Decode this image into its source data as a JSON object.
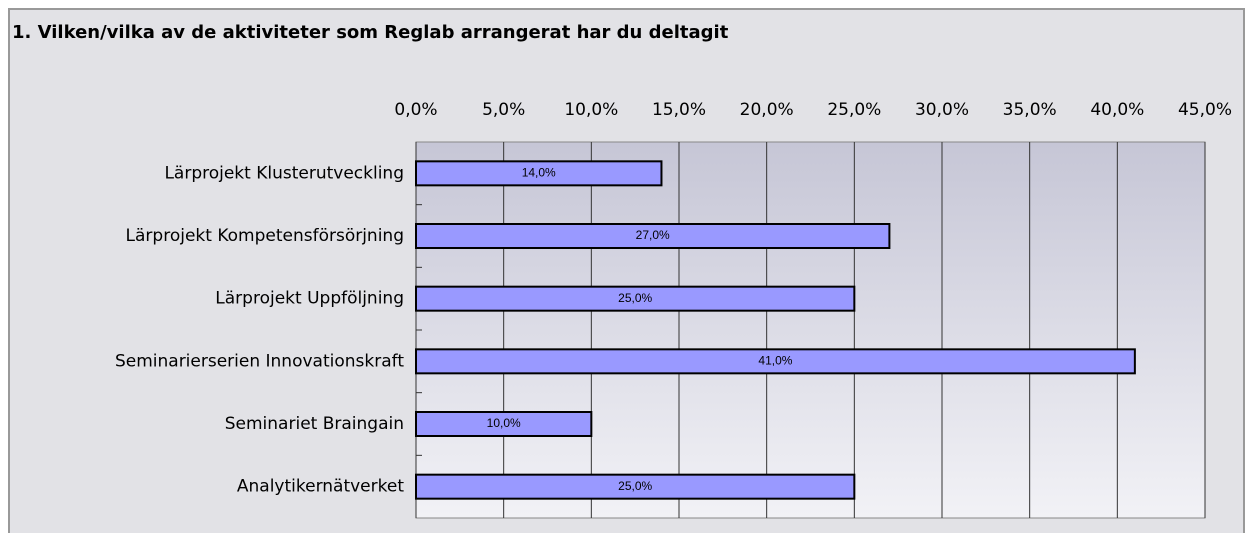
{
  "chart_data": {
    "type": "bar",
    "orientation": "horizontal",
    "title": "1. Vilken/vilka av de aktiviteter som Reglab arrangerat har du deltagit",
    "categories": [
      "Lärprojekt Klusterutveckling",
      "Lärprojekt Kompetensförsörjning",
      "Lärprojekt Uppföljning",
      "Seminarierserien Innovationskraft",
      "Seminariet Braingain",
      "Analytikernätverket"
    ],
    "values": [
      14,
      27,
      25,
      41,
      10,
      25
    ],
    "value_labels": [
      "14,0%",
      "27,0%",
      "25,0%",
      "41,0%",
      "10,0%",
      "25,0%"
    ],
    "color": "#9999ff",
    "xlim": [
      0,
      45
    ],
    "xticks": [
      {
        "value": 0,
        "label": "0,0%"
      },
      {
        "value": 5,
        "label": "5,0%"
      },
      {
        "value": 10,
        "label": "10,0%"
      },
      {
        "value": 15,
        "label": "15,0%"
      },
      {
        "value": 20,
        "label": "20,0%"
      },
      {
        "value": 25,
        "label": "25,0%"
      },
      {
        "value": 30,
        "label": "30,0%"
      },
      {
        "value": 35,
        "label": "35,0%"
      },
      {
        "value": 40,
        "label": "40,0%"
      },
      {
        "value": 45,
        "label": "45,0%"
      }
    ],
    "grid": true
  }
}
